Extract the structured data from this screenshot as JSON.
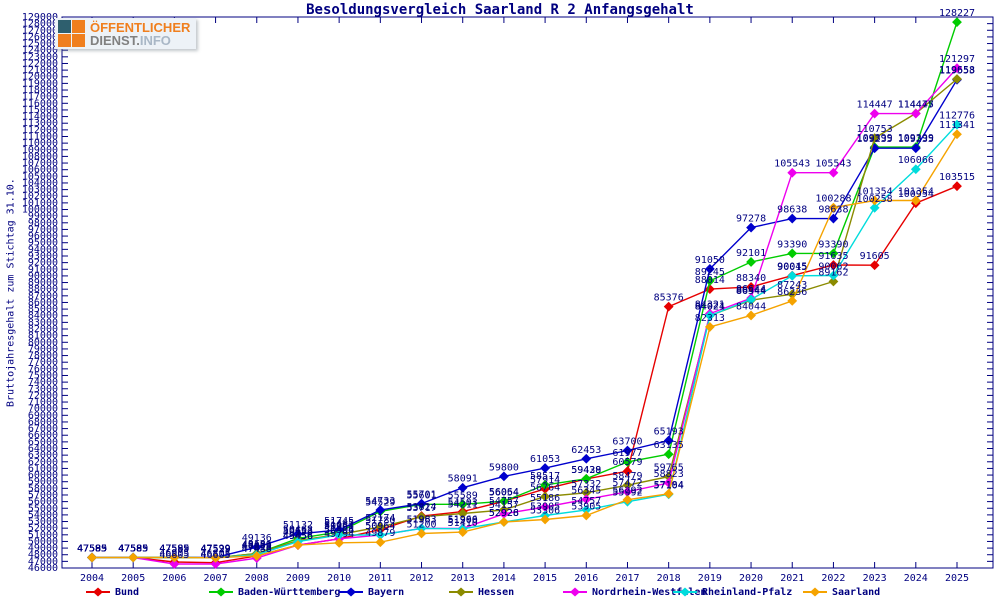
{
  "title": "Besoldungsvergleich Saarland R 2 Anfangsgehalt",
  "y_axis": {
    "label": "Bruttojahresgehalt zum Stichtag 31.10.",
    "min": 46000,
    "max": 129000,
    "step": 1000
  },
  "logo": {
    "top": "ÖFFENTLICHER",
    "bottom_primary": "DIENST.",
    "bottom_secondary": "INFO",
    "square_colors": [
      "#2e5f6e",
      "#f07f1e",
      "#f07f1e",
      "#f07f1e"
    ]
  },
  "colors": {
    "text": "#000080",
    "frame": "#000080"
  },
  "chart_data": {
    "type": "line",
    "x": [
      2004,
      2005,
      2006,
      2007,
      2008,
      2009,
      2010,
      2011,
      2012,
      2013,
      2014,
      2015,
      2016,
      2017,
      2018,
      2019,
      2020,
      2021,
      2022,
      2023,
      2024,
      2025
    ],
    "ylim": [
      46000,
      129000
    ],
    "grid": false,
    "legend_position": "bottom",
    "point_labels": true,
    "series": [
      {
        "name": "Bund",
        "color": "#e60000",
        "values": [
          47585,
          47585,
          46905,
          46805,
          47818,
          49456,
          50406,
          51780,
          53824,
          54503,
          56054,
          57914,
          59428,
          60579,
          85376,
          88014,
          88340,
          90045,
          91635,
          91605,
          100954,
          103515
        ]
      },
      {
        "name": "Baden-Württemberg",
        "color": "#00cc00",
        "values": [
          47585,
          47585,
          47585,
          47529,
          48186,
          50462,
          51445,
          54529,
          55601,
          55589,
          56064,
          58517,
          59439,
          61977,
          63135,
          89245,
          92101,
          93390,
          93390,
          109399,
          109399,
          128227
        ]
      },
      {
        "name": "Bayern",
        "color": "#0000cd",
        "values": [
          47599,
          47599,
          47599,
          47599,
          49136,
          51132,
          51745,
          54733,
          55701,
          58091,
          59800,
          61053,
          62453,
          63700,
          65193,
          91050,
          97278,
          98638,
          98638,
          109235,
          109235,
          119553
        ]
      },
      {
        "name": "Hessen",
        "color": "#8b8b00",
        "values": [
          47585,
          47585,
          47585,
          47529,
          48186,
          50153,
          51041,
          52174,
          53717,
          54211,
          54757,
          56764,
          57332,
          58479,
          59765,
          84021,
          86344,
          87243,
          89162,
          110753,
          114475,
          119658
        ]
      },
      {
        "name": "Nordrhein-Westfalen",
        "color": "#ee00ee",
        "values": [
          47585,
          47585,
          46605,
          46605,
          47488,
          49456,
          50394,
          50964,
          51983,
          51966,
          54157,
          55186,
          56345,
          57472,
          58823,
          84321,
          86644,
          105543,
          105543,
          114447,
          114447,
          121297
        ]
      },
      {
        "name": "Rheinland-Pfalz",
        "color": "#00dcdc",
        "values": [
          47585,
          47585,
          47585,
          47529,
          48003,
          49979,
          50964,
          50964,
          51963,
          51900,
          52926,
          53905,
          54757,
          55992,
          57104,
          84024,
          86444,
          90015,
          90062,
          100258,
          106066,
          112776
        ]
      },
      {
        "name": "Saarland",
        "color": "#f5a300",
        "values": [
          47585,
          47585,
          47585,
          47529,
          47818,
          49456,
          49794,
          49879,
          51200,
          51410,
          52928,
          53306,
          53905,
          56292,
          57184,
          82313,
          84044,
          86236,
          100288,
          101354,
          101354,
          111341
        ]
      }
    ]
  }
}
